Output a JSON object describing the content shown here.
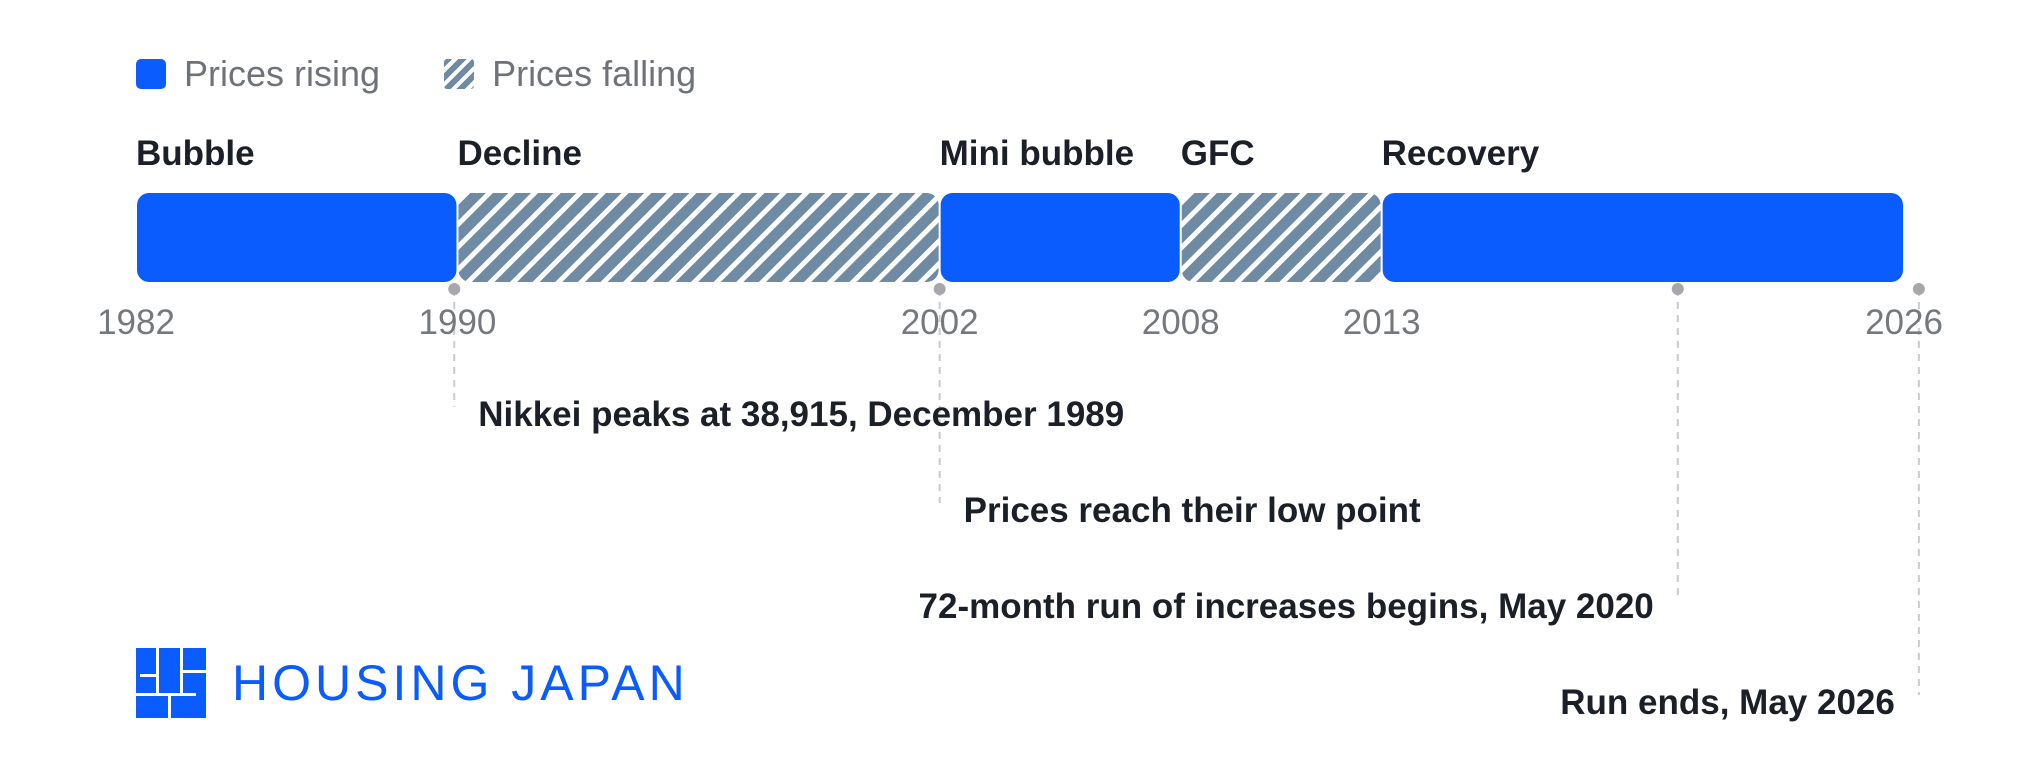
{
  "legend": {
    "rising_label": "Prices rising",
    "falling_label": "Prices falling"
  },
  "colors": {
    "rising": "#0b5cff",
    "falling": "#6f8ba3",
    "axis_text": "#75787d",
    "label_text": "#1b1f27",
    "guide": "#c9cbce",
    "dot": "#a6a8ab"
  },
  "chart_data": {
    "type": "timeline",
    "x_domain": [
      1982,
      2026
    ],
    "ticks": [
      "1982",
      "1990",
      "2002",
      "2008",
      "2013",
      "2026"
    ],
    "phases": [
      {
        "label": "Bubble",
        "start": 1982,
        "end": 1990,
        "state": "rising"
      },
      {
        "label": "Decline",
        "start": 1990,
        "end": 2002,
        "state": "falling"
      },
      {
        "label": "Mini bubble",
        "start": 2002,
        "end": 2008,
        "state": "rising"
      },
      {
        "label": "GFC",
        "start": 2008,
        "end": 2013,
        "state": "falling"
      },
      {
        "label": "Recovery",
        "start": 2013,
        "end": 2026,
        "state": "rising"
      }
    ],
    "events": [
      {
        "label": "Nikkei peaks at 38,915, December 1989",
        "date": 1989.92
      },
      {
        "label": "Prices reach their low point",
        "date": 2002
      },
      {
        "label": "72-month run of increases begins, May 2020",
        "date": 2020.37
      },
      {
        "label": "Run ends, May 2026",
        "date": 2026.37
      }
    ]
  },
  "branding": {
    "logo_text": "HOUSING JAPAN",
    "logo_icon": "housing-japan-logo-icon"
  }
}
